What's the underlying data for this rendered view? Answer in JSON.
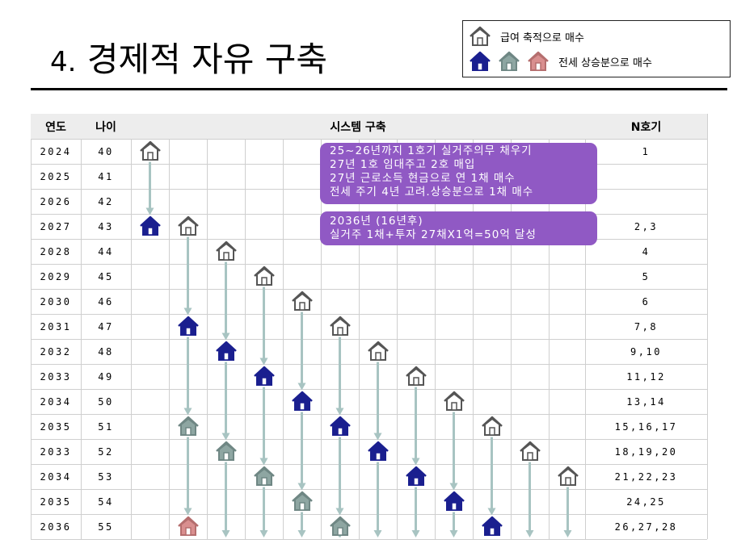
{
  "title": {
    "number": "4.",
    "text": "경제적 자유 구축"
  },
  "legend": {
    "item1": {
      "label": "급여 축적으로 매수",
      "icon": "house-outline-icon"
    },
    "item2": {
      "label": "전세 상승분으로 매수",
      "icons": [
        "house-navy-icon",
        "house-gray-icon",
        "house-pink-icon"
      ]
    }
  },
  "table": {
    "headers": {
      "year": "연도",
      "age": "나이",
      "system": "시스템 구축",
      "units": "N호기"
    },
    "rows": [
      {
        "year": "2024",
        "age": "40",
        "units": "1"
      },
      {
        "year": "2025",
        "age": "41",
        "units": ""
      },
      {
        "year": "2026",
        "age": "42",
        "units": ""
      },
      {
        "year": "2027",
        "age": "43",
        "units": "2,3"
      },
      {
        "year": "2028",
        "age": "44",
        "units": "4"
      },
      {
        "year": "2029",
        "age": "45",
        "units": "5"
      },
      {
        "year": "2030",
        "age": "46",
        "units": "6"
      },
      {
        "year": "2031",
        "age": "47",
        "units": "7,8"
      },
      {
        "year": "2032",
        "age": "48",
        "units": "9,10"
      },
      {
        "year": "2033",
        "age": "49",
        "units": "11,12"
      },
      {
        "year": "2034",
        "age": "50",
        "units": "13,14"
      },
      {
        "year": "2035",
        "age": "51",
        "units": "15,16,17"
      },
      {
        "year": "2033",
        "age": "52",
        "units": "18,19,20"
      },
      {
        "year": "2034",
        "age": "53",
        "units": "21,22,23"
      },
      {
        "year": "2035",
        "age": "54",
        "units": "24,25"
      },
      {
        "year": "2036",
        "age": "55",
        "units": "26,27,28"
      }
    ]
  },
  "notes": [
    {
      "lines": [
        "25~26년까지 1호기 실거주의무 채우기",
        "27년 1호 임대주고 2호 매입",
        "27년 근로소득 현금으로 연 1채 매수",
        "전세 주기 4년 고려.상승분으로 1채 매수"
      ]
    },
    {
      "lines": [
        "2036년 (16년후)",
        "실거주 1채+투자 27채X1억=50억 달성"
      ]
    }
  ],
  "houses": [
    {
      "col": 0,
      "row": 0,
      "type": "outline"
    },
    {
      "col": 0,
      "row": 3,
      "type": "navy"
    },
    {
      "col": 1,
      "row": 3,
      "type": "outline"
    },
    {
      "col": 2,
      "row": 4,
      "type": "outline"
    },
    {
      "col": 3,
      "row": 5,
      "type": "outline"
    },
    {
      "col": 4,
      "row": 6,
      "type": "outline"
    },
    {
      "col": 1,
      "row": 7,
      "type": "navy"
    },
    {
      "col": 5,
      "row": 7,
      "type": "outline"
    },
    {
      "col": 2,
      "row": 8,
      "type": "navy"
    },
    {
      "col": 6,
      "row": 8,
      "type": "outline"
    },
    {
      "col": 3,
      "row": 9,
      "type": "navy"
    },
    {
      "col": 7,
      "row": 9,
      "type": "outline"
    },
    {
      "col": 4,
      "row": 10,
      "type": "navy"
    },
    {
      "col": 8,
      "row": 10,
      "type": "outline"
    },
    {
      "col": 1,
      "row": 11,
      "type": "gray"
    },
    {
      "col": 5,
      "row": 11,
      "type": "navy"
    },
    {
      "col": 9,
      "row": 11,
      "type": "outline"
    },
    {
      "col": 2,
      "row": 12,
      "type": "gray"
    },
    {
      "col": 6,
      "row": 12,
      "type": "navy"
    },
    {
      "col": 10,
      "row": 12,
      "type": "outline"
    },
    {
      "col": 3,
      "row": 13,
      "type": "gray"
    },
    {
      "col": 7,
      "row": 13,
      "type": "navy"
    },
    {
      "col": 11,
      "row": 13,
      "type": "outline"
    },
    {
      "col": 4,
      "row": 14,
      "type": "gray"
    },
    {
      "col": 8,
      "row": 14,
      "type": "navy"
    },
    {
      "col": 1,
      "row": 15,
      "type": "pink"
    },
    {
      "col": 5,
      "row": 15,
      "type": "gray"
    },
    {
      "col": 9,
      "row": 15,
      "type": "navy"
    }
  ],
  "arrows": [
    {
      "col": 0,
      "from": 0,
      "to": 3
    },
    {
      "col": 1,
      "from": 3,
      "to": 7
    },
    {
      "col": 1,
      "from": 7,
      "to": 11
    },
    {
      "col": 1,
      "from": 11,
      "to": 15
    },
    {
      "col": 2,
      "from": 4,
      "to": 8
    },
    {
      "col": 2,
      "from": 8,
      "to": 12
    },
    {
      "col": 2,
      "from": 12,
      "to": 16
    },
    {
      "col": 3,
      "from": 5,
      "to": 9
    },
    {
      "col": 3,
      "from": 9,
      "to": 13
    },
    {
      "col": 3,
      "from": 13,
      "to": 16
    },
    {
      "col": 4,
      "from": 6,
      "to": 10
    },
    {
      "col": 4,
      "from": 10,
      "to": 14
    },
    {
      "col": 4,
      "from": 14,
      "to": 16
    },
    {
      "col": 5,
      "from": 7,
      "to": 11
    },
    {
      "col": 5,
      "from": 11,
      "to": 15
    },
    {
      "col": 5,
      "from": 15,
      "to": 16
    },
    {
      "col": 6,
      "from": 8,
      "to": 12
    },
    {
      "col": 6,
      "from": 12,
      "to": 16
    },
    {
      "col": 7,
      "from": 9,
      "to": 13
    },
    {
      "col": 7,
      "from": 13,
      "to": 16
    },
    {
      "col": 8,
      "from": 10,
      "to": 14
    },
    {
      "col": 8,
      "from": 14,
      "to": 16
    },
    {
      "col": 9,
      "from": 11,
      "to": 15
    },
    {
      "col": 10,
      "from": 12,
      "to": 16
    },
    {
      "col": 11,
      "from": 13,
      "to": 16
    }
  ],
  "colors": {
    "navy": "#1a1f8f",
    "gray": "#8ea6a2",
    "pink": "#d98f8f",
    "outline_stroke": "#555555",
    "arrow": "#a8c4c2",
    "note_bg": "#9059c4",
    "header_bg": "#ededed",
    "grid": "#cfcfcf"
  }
}
